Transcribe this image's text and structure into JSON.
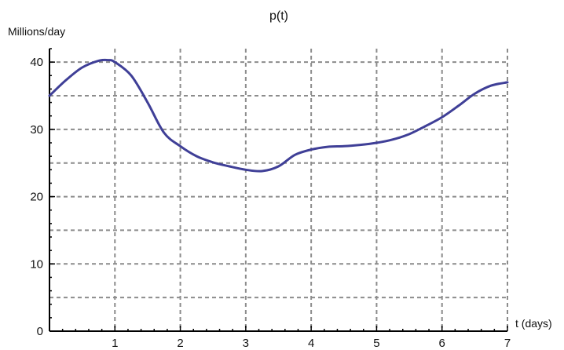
{
  "chart_data": {
    "type": "line",
    "title": "p(t)",
    "xlabel": "t (days)",
    "ylabel": "Millions/day",
    "xlim": [
      0,
      7
    ],
    "ylim": [
      0,
      42
    ],
    "x_ticks": [
      1,
      2,
      3,
      4,
      5,
      6,
      7
    ],
    "y_ticks": [
      0,
      10,
      20,
      30,
      40
    ],
    "x_grid": [
      1,
      2,
      3,
      4,
      5,
      6,
      7
    ],
    "y_grid": [
      5,
      10,
      15,
      20,
      25,
      30,
      35,
      40
    ],
    "grid": true,
    "colors": {
      "line": "#3f3f97",
      "grid": "#8c8c8c",
      "axis": "#000000"
    },
    "series": [
      {
        "x": [
          0,
          0.25,
          0.5,
          0.75,
          0.9,
          1.0,
          1.25,
          1.5,
          1.75,
          2.0,
          2.25,
          2.5,
          2.75,
          3.0,
          3.25,
          3.5,
          3.75,
          4.0,
          4.25,
          4.5,
          4.75,
          5.0,
          5.25,
          5.5,
          5.75,
          6.0,
          6.25,
          6.5,
          6.75,
          7.0
        ],
        "y": [
          35.0,
          37.3,
          39.2,
          40.2,
          40.3,
          40.0,
          38.0,
          34.0,
          29.5,
          27.5,
          26.0,
          25.1,
          24.5,
          24.0,
          23.8,
          24.5,
          26.2,
          27.0,
          27.4,
          27.5,
          27.7,
          28.0,
          28.5,
          29.3,
          30.5,
          31.8,
          33.5,
          35.3,
          36.5,
          37.0
        ]
      }
    ]
  }
}
